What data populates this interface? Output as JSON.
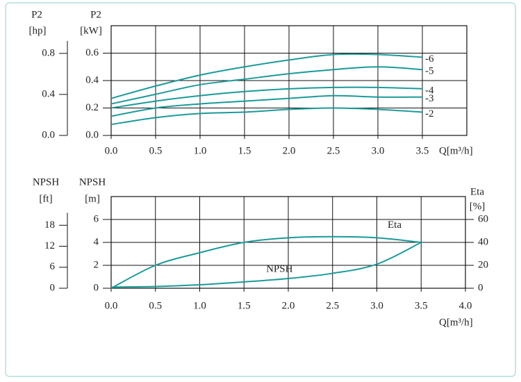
{
  "chart_data": [
    {
      "type": "line",
      "x_label": "Q[m³/h]",
      "y_title": "P2",
      "y_unit": "[kW]",
      "y2_title": "P2",
      "y2_unit": "[hp]",
      "x": [
        0,
        0.5,
        1.0,
        1.5,
        2.0,
        2.5,
        3.0,
        3.5
      ],
      "xlim": [
        0,
        4
      ],
      "xticks": [
        {
          "value": 0,
          "label": "0.0"
        },
        {
          "value": 0.5,
          "label": "0.5"
        },
        {
          "value": 1,
          "label": "1.0"
        },
        {
          "value": 1.5,
          "label": "1.5"
        },
        {
          "value": 2,
          "label": "2.0"
        },
        {
          "value": 2.5,
          "label": "2.5"
        },
        {
          "value": 3,
          "label": "3.0"
        },
        {
          "value": 3.5,
          "label": "3.5"
        }
      ],
      "ylim": [
        0,
        0.8
      ],
      "yticks": [
        {
          "value": 0,
          "label": "0.0"
        },
        0.2,
        0.4,
        0.6
      ],
      "y2lim": [
        0,
        1.07
      ],
      "y2ticks": [
        {
          "value": 0,
          "label": "0.0"
        },
        0.4,
        0.8
      ],
      "grid": true,
      "series": [
        {
          "name": "-6",
          "color": "#1a9a9a",
          "values": [
            0.27,
            0.36,
            0.44,
            0.5,
            0.55,
            0.59,
            0.59,
            0.57
          ]
        },
        {
          "name": "-5",
          "color": "#1a9a9a",
          "values": [
            0.23,
            0.3,
            0.37,
            0.41,
            0.45,
            0.48,
            0.5,
            0.48
          ]
        },
        {
          "name": "-4",
          "color": "#1a9a9a",
          "values": [
            0.2,
            0.25,
            0.29,
            0.32,
            0.34,
            0.35,
            0.35,
            0.34
          ]
        },
        {
          "name": "-3",
          "color": "#1a9a9a",
          "values": [
            0.14,
            0.2,
            0.23,
            0.25,
            0.27,
            0.29,
            0.28,
            0.28
          ]
        },
        {
          "name": "-2",
          "color": "#1a9a9a",
          "values": [
            0.08,
            0.13,
            0.16,
            0.17,
            0.19,
            0.2,
            0.19,
            0.17
          ]
        }
      ]
    },
    {
      "type": "line",
      "x_label": "Q[m³/h]",
      "y_title": "NPSH",
      "y_unit": "[m]",
      "y2_title": "Eta",
      "y2_unit": "[%]",
      "y3_title": "NPSH",
      "y3_unit": "[ft]",
      "x": [
        0,
        0.5,
        1.0,
        1.5,
        2.0,
        2.5,
        3.0,
        3.5
      ],
      "xlim": [
        0,
        4
      ],
      "xticks": [
        {
          "value": 0,
          "label": "0.0"
        },
        {
          "value": 0.5,
          "label": "0.5"
        },
        {
          "value": 1,
          "label": "1.0"
        },
        {
          "value": 1.5,
          "label": "1.5"
        },
        {
          "value": 2,
          "label": "2.0"
        },
        {
          "value": 2.5,
          "label": "2.5"
        },
        {
          "value": 3,
          "label": "3.0"
        },
        {
          "value": 3.5,
          "label": "3.5"
        },
        {
          "value": 4,
          "label": "4.0"
        }
      ],
      "ylim": [
        0,
        8
      ],
      "yticks": [
        0,
        2,
        4,
        6
      ],
      "y2lim": [
        0,
        80
      ],
      "y2ticks": [
        0,
        20,
        40,
        60
      ],
      "y3lim": [
        0,
        26.2
      ],
      "y3ticks": [
        0,
        6,
        12,
        18
      ],
      "grid": true,
      "series": [
        {
          "name": "Eta",
          "color": "#1a9a9a",
          "axis": "y2",
          "values": [
            0,
            20,
            31,
            40,
            44,
            45,
            44,
            40
          ]
        },
        {
          "name": "NPSH",
          "color": "#1a9a9a",
          "values": [
            0.1,
            0.15,
            0.3,
            0.55,
            0.85,
            1.3,
            2.1,
            4.0
          ]
        }
      ]
    }
  ]
}
